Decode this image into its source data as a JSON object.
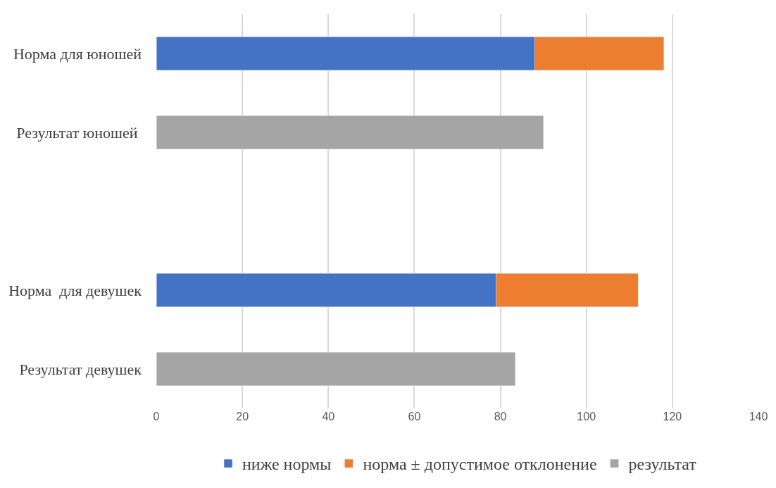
{
  "chart_data": {
    "type": "bar",
    "orientation": "horizontal",
    "stacked": true,
    "categories": [
      "Норма для юношей",
      "Результат юношей ",
      null,
      "Норма  для девушек",
      "Результат девушек"
    ],
    "series": [
      {
        "name": "ниже нормы",
        "color": "#4472c4",
        "values": [
          88,
          null,
          null,
          79,
          null
        ]
      },
      {
        "name": "норма ± допустимое отклонение",
        "color": "#ed7d31",
        "values": [
          30,
          null,
          null,
          33,
          null
        ]
      },
      {
        "name": "результат",
        "color": "#a5a5a5",
        "values": [
          null,
          90,
          null,
          null,
          83.5
        ]
      }
    ],
    "xlim": [
      0,
      140
    ],
    "xticks": [
      0,
      20,
      40,
      60,
      80,
      100,
      120,
      140
    ],
    "grid": "x",
    "legend": "bottom"
  }
}
